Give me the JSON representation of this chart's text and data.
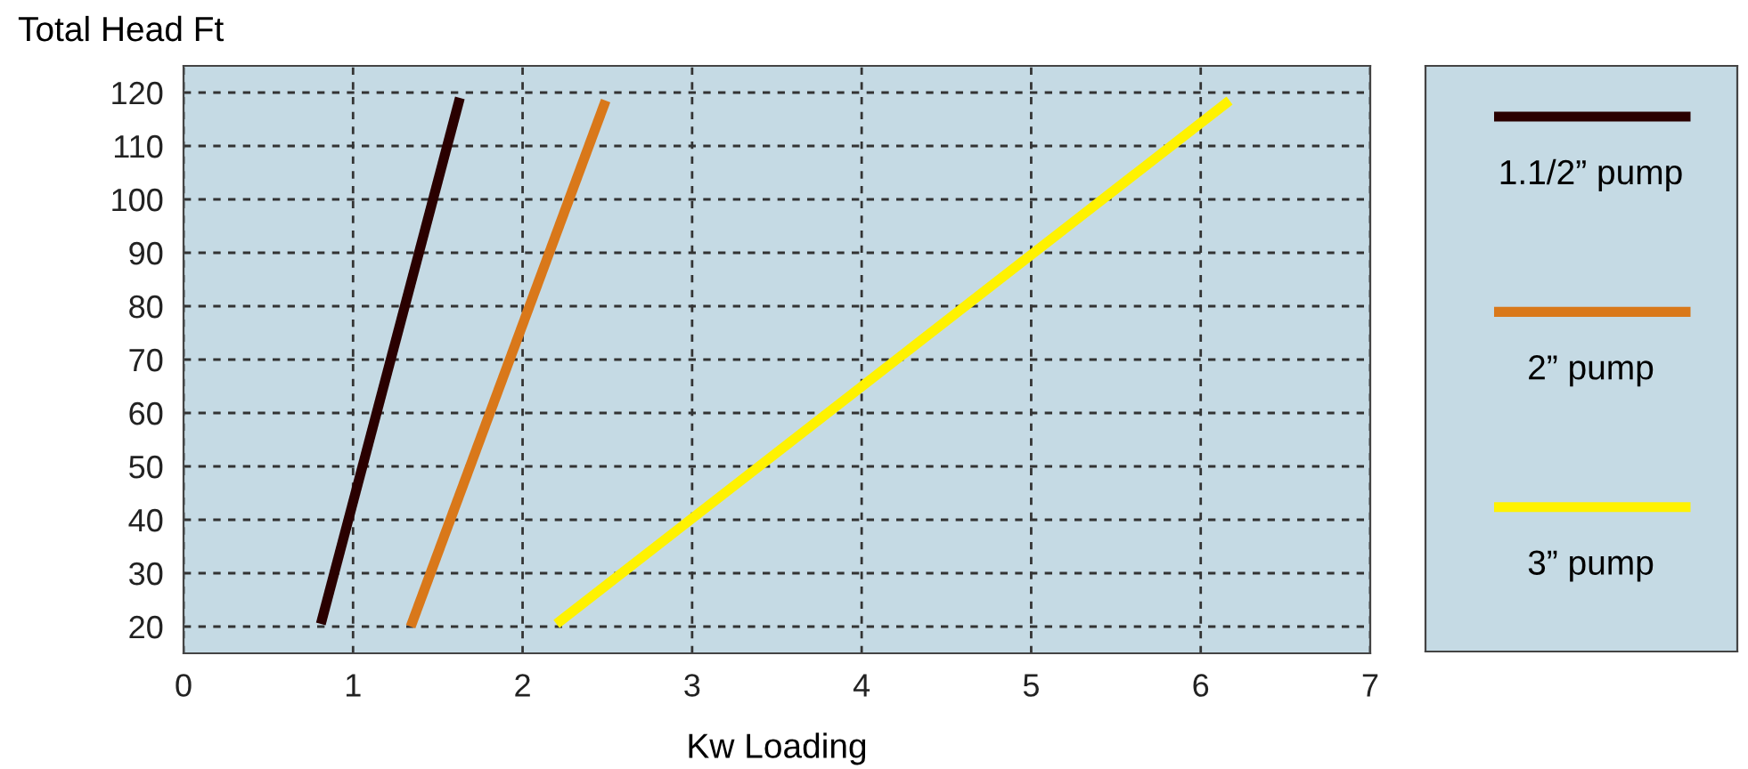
{
  "chart_data": {
    "type": "line",
    "ylabel": "Total Head Ft",
    "xlabel": "Kw Loading",
    "series": [
      {
        "name": "1.1/2” pump",
        "color": "#2a0000",
        "x": [
          0.81,
          1.63
        ],
        "values": [
          20.5,
          119
        ]
      },
      {
        "name": "2” pump",
        "color": "#d9781a",
        "x": [
          1.34,
          2.49
        ],
        "values": [
          20,
          118.5
        ]
      },
      {
        "name": "3” pump",
        "color": "#fff200",
        "x": [
          2.2,
          6.17
        ],
        "values": [
          20.5,
          118.5
        ]
      }
    ],
    "xlim": [
      0,
      7
    ],
    "xticks": [
      0,
      1,
      2,
      3,
      4,
      5,
      6,
      7
    ],
    "ylim": [
      15,
      125
    ],
    "yticks": [
      20,
      30,
      40,
      50,
      60,
      70,
      80,
      90,
      100,
      110,
      120
    ],
    "grid": true,
    "legend": "right",
    "marker": "none",
    "line_style": "solid"
  }
}
